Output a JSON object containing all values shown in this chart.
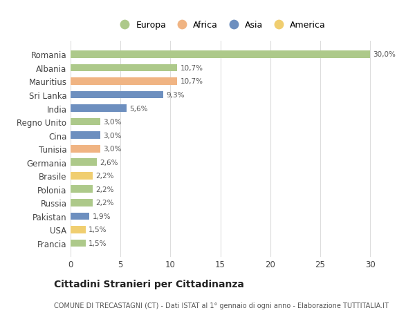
{
  "countries": [
    "Romania",
    "Albania",
    "Mauritius",
    "Sri Lanka",
    "India",
    "Regno Unito",
    "Cina",
    "Tunisia",
    "Germania",
    "Brasile",
    "Polonia",
    "Russia",
    "Pakistan",
    "USA",
    "Francia"
  ],
  "values": [
    30.0,
    10.7,
    10.7,
    9.3,
    5.6,
    3.0,
    3.0,
    3.0,
    2.6,
    2.2,
    2.2,
    2.2,
    1.9,
    1.5,
    1.5
  ],
  "labels": [
    "30,0%",
    "10,7%",
    "10,7%",
    "9,3%",
    "5,6%",
    "3,0%",
    "3,0%",
    "3,0%",
    "2,6%",
    "2,2%",
    "2,2%",
    "2,2%",
    "1,9%",
    "1,5%",
    "1,5%"
  ],
  "continents": [
    "Europa",
    "Europa",
    "Africa",
    "Asia",
    "Asia",
    "Europa",
    "Asia",
    "Africa",
    "Europa",
    "America",
    "Europa",
    "Europa",
    "Asia",
    "America",
    "Europa"
  ],
  "continent_colors": {
    "Europa": "#adc98a",
    "Africa": "#f0b483",
    "Asia": "#6d8fbf",
    "America": "#f0ce70"
  },
  "legend_order": [
    "Europa",
    "Africa",
    "Asia",
    "America"
  ],
  "title": "Cittadini Stranieri per Cittadinanza",
  "subtitle": "COMUNE DI TRECASTAGNI (CT) - Dati ISTAT al 1° gennaio di ogni anno - Elaborazione TUTTITALIA.IT",
  "xlim": [
    0,
    32
  ],
  "xticks": [
    0,
    5,
    10,
    15,
    20,
    25,
    30
  ],
  "bg_color": "#ffffff",
  "grid_color": "#dddddd",
  "bar_height": 0.55
}
